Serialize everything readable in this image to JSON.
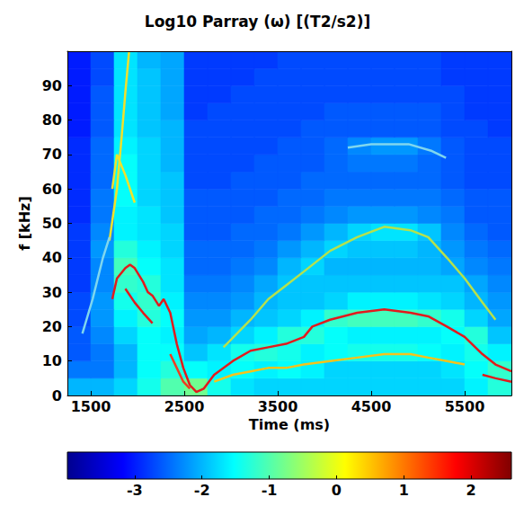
{
  "chart_data": {
    "type": "heatmap",
    "title": "Log10 Parray (ω) [(T2/s2)]",
    "x_label": "Time (ms)",
    "y_label": "f [kHz]",
    "xlim": [
      1250,
      6000
    ],
    "xticks": [
      1500,
      2500,
      3500,
      4500,
      5500
    ],
    "ylim": [
      0,
      100
    ],
    "yticks": [
      0,
      10,
      20,
      30,
      40,
      50,
      60,
      70,
      80,
      90
    ],
    "grid": false,
    "heatmap": {
      "x_edges": [
        1250,
        1500,
        1750,
        2000,
        2250,
        2500,
        2750,
        3000,
        3250,
        3500,
        3750,
        4000,
        4250,
        4500,
        4750,
        5000,
        5250,
        5500,
        5750,
        6000
      ],
      "y_edges": [
        0,
        5,
        10,
        15,
        20,
        25,
        30,
        35,
        40,
        45,
        50,
        55,
        60,
        65,
        70,
        75,
        80,
        85,
        90,
        95,
        100
      ],
      "z": [
        [
          -2.0,
          -2.0,
          -1.8,
          -1.4,
          -1.0,
          -0.8,
          -1.4,
          -1.7,
          -1.8,
          -1.8,
          -1.8,
          -1.8,
          -1.8,
          -1.8,
          -1.8,
          -1.8,
          -1.8,
          -1.6,
          -1.3
        ],
        [
          -2.4,
          -2.4,
          -2.0,
          -1.5,
          -1.3,
          -1.5,
          -1.6,
          -1.5,
          -1.6,
          -1.5,
          -1.6,
          -1.8,
          -1.8,
          -1.8,
          -1.8,
          -1.8,
          -1.7,
          -1.5,
          -1.2
        ],
        [
          -2.6,
          -2.4,
          -2.0,
          -1.5,
          -1.5,
          -1.9,
          -1.7,
          -1.4,
          -1.3,
          -1.4,
          -1.6,
          -1.5,
          -1.4,
          -1.4,
          -1.4,
          -1.5,
          -1.6,
          -1.4,
          -1.6
        ],
        [
          -2.6,
          -2.3,
          -1.8,
          -1.5,
          -1.6,
          -2.1,
          -2.0,
          -1.8,
          -1.6,
          -1.3,
          -1.3,
          -1.5,
          -1.6,
          -1.6,
          -1.6,
          -1.6,
          -1.5,
          -1.3,
          -1.9
        ],
        [
          -2.7,
          -2.2,
          -1.6,
          -1.3,
          -1.5,
          -2.2,
          -2.2,
          -2.0,
          -1.9,
          -1.8,
          -1.6,
          -1.2,
          -1.1,
          -1.1,
          -1.1,
          -1.2,
          -1.4,
          -1.8,
          -2.1
        ],
        [
          -2.7,
          -2.2,
          -1.4,
          -1.2,
          -1.6,
          -2.3,
          -2.3,
          -2.2,
          -2.0,
          -1.9,
          -1.9,
          -1.8,
          -1.6,
          -1.6,
          -1.6,
          -1.7,
          -1.8,
          -2.0,
          -2.2
        ],
        [
          -2.8,
          -2.3,
          -1.2,
          -1.3,
          -1.7,
          -2.4,
          -2.4,
          -2.3,
          -2.1,
          -1.9,
          -1.9,
          -1.9,
          -1.9,
          -1.9,
          -1.9,
          -1.9,
          -1.9,
          -2.1,
          -2.3
        ],
        [
          -2.8,
          -2.3,
          -1.1,
          -1.5,
          -1.7,
          -2.5,
          -2.5,
          -2.4,
          -2.3,
          -2.0,
          -1.8,
          -2.0,
          -2.0,
          -2.0,
          -2.0,
          -2.0,
          -2.1,
          -2.3,
          -2.4
        ],
        [
          -2.8,
          -2.2,
          -1.3,
          -1.6,
          -1.8,
          -2.5,
          -2.5,
          -2.5,
          -2.4,
          -2.2,
          -2.0,
          -1.8,
          -1.9,
          -1.9,
          -1.9,
          -2.0,
          -2.2,
          -2.4,
          -2.5
        ],
        [
          -2.8,
          -2.3,
          -1.6,
          -1.7,
          -1.8,
          -2.6,
          -2.6,
          -2.5,
          -2.5,
          -2.4,
          -2.2,
          -2.0,
          -1.8,
          -1.7,
          -1.7,
          -1.9,
          -2.3,
          -2.5,
          -2.6
        ],
        [
          -2.9,
          -2.4,
          -1.6,
          -1.7,
          -1.9,
          -2.6,
          -2.6,
          -2.6,
          -2.5,
          -2.5,
          -2.4,
          -2.3,
          -2.2,
          -2.2,
          -2.2,
          -2.3,
          -2.4,
          -2.6,
          -2.6
        ],
        [
          -2.9,
          -2.4,
          -1.5,
          -1.8,
          -1.9,
          -2.6,
          -2.6,
          -2.6,
          -2.6,
          -2.5,
          -2.5,
          -2.4,
          -2.4,
          -2.4,
          -2.4,
          -2.4,
          -2.5,
          -2.6,
          -2.6
        ],
        [
          -2.9,
          -2.5,
          -1.5,
          -1.8,
          -1.9,
          -2.7,
          -2.7,
          -2.6,
          -2.6,
          -2.6,
          -2.5,
          -2.5,
          -2.5,
          -2.5,
          -2.5,
          -2.5,
          -2.6,
          -2.7,
          -2.7
        ],
        [
          -2.9,
          -2.5,
          -1.5,
          -1.8,
          -2.0,
          -2.7,
          -2.7,
          -2.7,
          -2.6,
          -2.6,
          -2.6,
          -2.5,
          -2.4,
          -2.4,
          -2.4,
          -2.5,
          -2.6,
          -2.7,
          -2.7
        ],
        [
          -2.9,
          -2.5,
          -1.6,
          -1.8,
          -2.0,
          -2.7,
          -2.7,
          -2.7,
          -2.7,
          -2.6,
          -2.6,
          -2.5,
          -2.3,
          -2.2,
          -2.2,
          -2.4,
          -2.6,
          -2.7,
          -2.7
        ],
        [
          -3.0,
          -2.6,
          -1.7,
          -1.9,
          -2.0,
          -2.7,
          -2.7,
          -2.7,
          -2.7,
          -2.7,
          -2.6,
          -2.6,
          -2.6,
          -2.6,
          -2.6,
          -2.6,
          -2.7,
          -2.7,
          -2.8
        ],
        [
          -3.0,
          -2.6,
          -1.7,
          -1.9,
          -2.1,
          -2.8,
          -2.7,
          -2.7,
          -2.7,
          -2.7,
          -2.7,
          -2.6,
          -2.6,
          -2.6,
          -2.6,
          -2.6,
          -2.7,
          -2.8,
          -2.8
        ],
        [
          -3.0,
          -2.6,
          -1.7,
          -1.9,
          -2.1,
          -2.8,
          -2.8,
          -2.7,
          -2.7,
          -2.7,
          -2.7,
          -2.7,
          -2.7,
          -2.7,
          -2.7,
          -2.7,
          -2.7,
          -2.8,
          -2.8
        ],
        [
          -3.0,
          -2.7,
          -1.7,
          -1.9,
          -2.1,
          -2.8,
          -2.8,
          -2.8,
          -2.7,
          -2.7,
          -2.7,
          -2.7,
          -2.7,
          -2.7,
          -2.7,
          -2.7,
          -2.8,
          -2.8,
          -2.8
        ],
        [
          -3.0,
          -2.7,
          -1.7,
          -2.0,
          -2.1,
          -2.8,
          -2.8,
          -2.8,
          -2.8,
          -2.7,
          -2.7,
          -2.7,
          -2.7,
          -2.7,
          -2.7,
          -2.7,
          -2.8,
          -2.8,
          -2.8
        ]
      ]
    },
    "colorbar": {
      "lim": [
        -4,
        2.6
      ],
      "ticks": [
        -3,
        -2,
        -1,
        0,
        1,
        2
      ]
    },
    "series": [
      {
        "type": "line",
        "color": "#e31a1c",
        "x": [
          1730,
          1780,
          1870,
          1920,
          1970,
          2060,
          2110,
          2160,
          2230,
          2280,
          2350,
          2420,
          2490,
          2560,
          2630,
          2710,
          2820,
          3020,
          3210,
          3400,
          3590,
          3780,
          3870,
          4060,
          4350,
          4640,
          4920,
          5110,
          5310,
          5500,
          5690,
          5830,
          6000
        ],
        "values": [
          28,
          34,
          37,
          38,
          37,
          33,
          30,
          29,
          26,
          28,
          24,
          15,
          8,
          3,
          1,
          2,
          6,
          10,
          13,
          14,
          15,
          17,
          20,
          22,
          24,
          25,
          24,
          23,
          20,
          17,
          12,
          9,
          7
        ]
      },
      {
        "type": "line",
        "color": "#e31a1c",
        "x": [
          1870,
          1970,
          2060,
          2160
        ],
        "values": [
          31,
          27,
          24,
          21
        ]
      },
      {
        "type": "line",
        "color": "#f03b20",
        "x": [
          2350,
          2420,
          2490,
          2560
        ],
        "values": [
          12,
          8,
          4,
          2
        ]
      },
      {
        "type": "line",
        "color": "#f7c31b",
        "x": [
          2820,
          3020,
          3210,
          3400,
          3590,
          3780,
          4060,
          4350,
          4640,
          4920,
          5110,
          5310,
          5500
        ],
        "values": [
          4,
          6,
          7,
          8,
          8,
          9,
          10,
          11,
          12,
          12,
          11,
          10,
          9
        ]
      },
      {
        "type": "line",
        "color": "#e31a1c",
        "x": [
          5690,
          5830,
          6000
        ],
        "values": [
          6,
          5,
          4
        ]
      },
      {
        "type": "line",
        "color": "#b5e14d",
        "x": [
          2920,
          3210,
          3400,
          3590,
          3780,
          4060,
          4350,
          4640,
          4920,
          5110,
          5310,
          5500,
          5690,
          5830
        ],
        "values": [
          14,
          22,
          28,
          32,
          36,
          42,
          46,
          49,
          48,
          46,
          40,
          34,
          27,
          22
        ]
      },
      {
        "type": "line",
        "color": "#7fd6ee",
        "x": [
          4250,
          4500,
          4900,
          5150,
          5300
        ],
        "values": [
          72,
          73,
          73,
          71,
          69
        ]
      },
      {
        "type": "line",
        "color": "#f2e12a",
        "x": [
          1730,
          1780,
          1870,
          1970
        ],
        "values": [
          60,
          70,
          64,
          56
        ]
      },
      {
        "type": "line",
        "color": "#f2e12a",
        "x": [
          1700,
          1780,
          1830,
          1870,
          1910
        ],
        "values": [
          45,
          60,
          75,
          88,
          100
        ]
      },
      {
        "type": "line",
        "color": "#7fd6ee",
        "x": [
          1410,
          1520,
          1630,
          1700
        ],
        "values": [
          18,
          28,
          40,
          46
        ]
      }
    ]
  }
}
